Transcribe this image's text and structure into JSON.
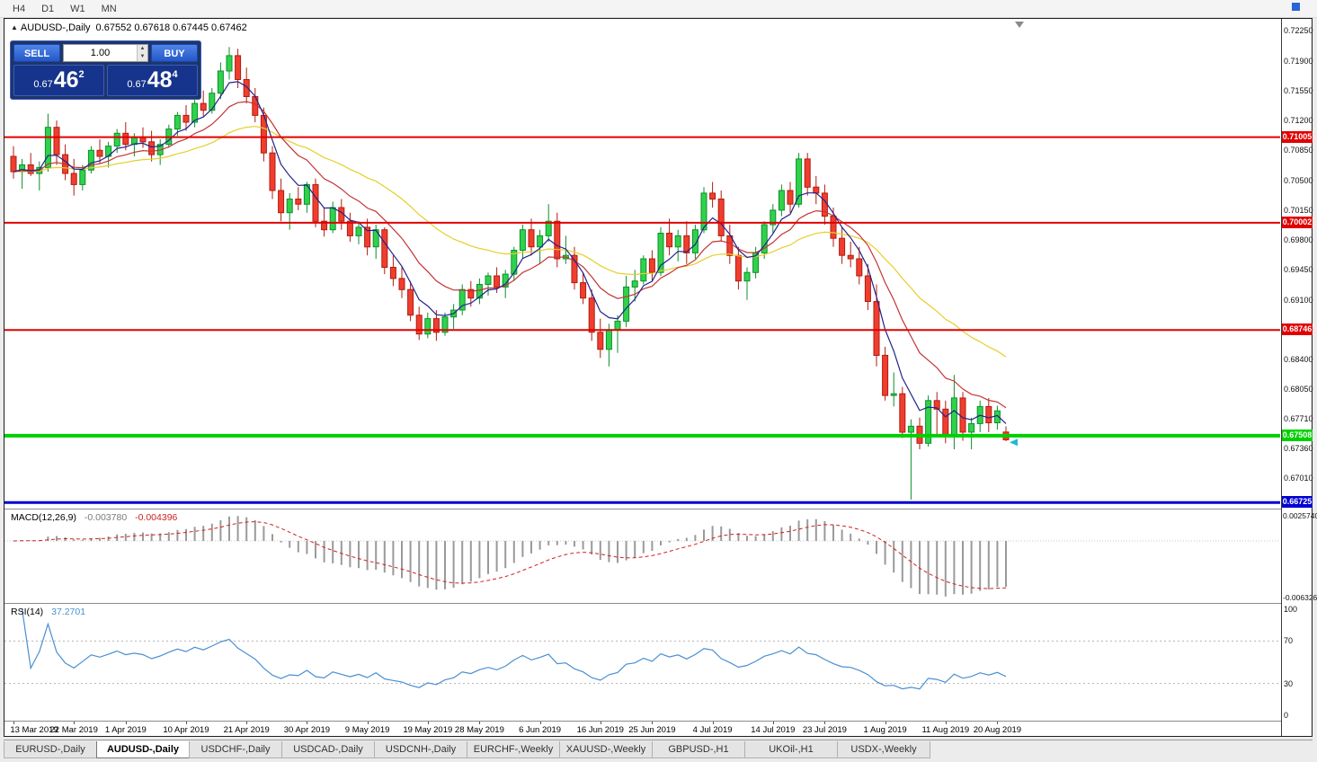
{
  "window": {
    "toolbar_buttons": [
      "H4",
      "D1",
      "W1",
      "MN"
    ]
  },
  "header": {
    "collapse_icon": "▲",
    "title": "AUDUSD-,Daily",
    "ohlc": "0.67552 0.67618 0.67445 0.67462"
  },
  "trade_panel": {
    "sell_label": "SELL",
    "buy_label": "BUY",
    "volume": "1.00",
    "spin_up_icon": "▲",
    "spin_down_icon": "▼",
    "sell_price": {
      "prefix": "0.67",
      "big": "46",
      "sup": "2"
    },
    "buy_price": {
      "prefix": "0.67",
      "big": "48",
      "sup": "4"
    }
  },
  "chart_data": {
    "type": "candlestick",
    "title": "AUDUSD-,Daily",
    "price_axis": {
      "top": 0.7239,
      "bottom": 0.66655,
      "ticks": [
        "0.72250",
        "0.71900",
        "0.71550",
        "0.71200",
        "0.70850",
        "0.70500",
        "0.70150",
        "0.69800",
        "0.69450",
        "0.69100",
        "0.68750",
        "0.68400",
        "0.68050",
        "0.67710",
        "0.67360",
        "0.67010"
      ]
    },
    "hlines": [
      {
        "price": 0.71005,
        "label": "0.71005",
        "color": "#e00000",
        "width": 2
      },
      {
        "price": 0.70002,
        "label": "0.70002",
        "color": "#e00000",
        "width": 2
      },
      {
        "price": 0.68746,
        "label": "0.68746",
        "color": "#e00000",
        "width": 2
      },
      {
        "price": 0.67508,
        "label": "0.67508",
        "color": "#00d000",
        "width": 4
      },
      {
        "price": 0.66725,
        "label": "0.66725",
        "color": "#0000d2",
        "width": 3
      }
    ],
    "moving_averages": [
      {
        "period": 30,
        "color": "#e6cf2a"
      },
      {
        "period": 12,
        "color": "#c43434"
      },
      {
        "period": 5,
        "color": "#22228e"
      }
    ],
    "candle_colors": {
      "bull": "#30d24b",
      "bull_border": "#0c8f2c",
      "bear": "#f03e2e",
      "bear_border": "#b01c10"
    },
    "candles": [
      [
        0.7078,
        0.709,
        0.7052,
        0.706
      ],
      [
        0.706,
        0.7075,
        0.704,
        0.7068
      ],
      [
        0.7068,
        0.7082,
        0.7055,
        0.7058
      ],
      [
        0.7058,
        0.7072,
        0.7038,
        0.7065
      ],
      [
        0.7065,
        0.7128,
        0.706,
        0.7112
      ],
      [
        0.7112,
        0.712,
        0.7068,
        0.708
      ],
      [
        0.708,
        0.7092,
        0.705,
        0.7058
      ],
      [
        0.7058,
        0.7075,
        0.7032,
        0.7045
      ],
      [
        0.7045,
        0.7068,
        0.7038,
        0.7062
      ],
      [
        0.7062,
        0.709,
        0.7058,
        0.7085
      ],
      [
        0.7085,
        0.7098,
        0.707,
        0.7078
      ],
      [
        0.7078,
        0.7095,
        0.7065,
        0.709
      ],
      [
        0.709,
        0.711,
        0.7082,
        0.7105
      ],
      [
        0.7105,
        0.7118,
        0.7085,
        0.7092
      ],
      [
        0.7092,
        0.7105,
        0.7078,
        0.71
      ],
      [
        0.71,
        0.7112,
        0.7088,
        0.7095
      ],
      [
        0.7095,
        0.7108,
        0.7072,
        0.708
      ],
      [
        0.708,
        0.7098,
        0.7068,
        0.7092
      ],
      [
        0.7092,
        0.7115,
        0.7088,
        0.711
      ],
      [
        0.711,
        0.713,
        0.7102,
        0.7126
      ],
      [
        0.7126,
        0.7138,
        0.7108,
        0.7118
      ],
      [
        0.7118,
        0.7145,
        0.7112,
        0.714
      ],
      [
        0.714,
        0.7155,
        0.7125,
        0.7132
      ],
      [
        0.7132,
        0.7158,
        0.7128,
        0.7152
      ],
      [
        0.7152,
        0.7188,
        0.7145,
        0.7178
      ],
      [
        0.7178,
        0.7206,
        0.7168,
        0.7196
      ],
      [
        0.7196,
        0.7204,
        0.7158,
        0.7168
      ],
      [
        0.7168,
        0.7182,
        0.714,
        0.7148
      ],
      [
        0.7148,
        0.7158,
        0.7118,
        0.7126
      ],
      [
        0.7126,
        0.7135,
        0.7072,
        0.7082
      ],
      [
        0.7082,
        0.709,
        0.7028,
        0.7038
      ],
      [
        0.7038,
        0.7052,
        0.7002,
        0.7012
      ],
      [
        0.7012,
        0.7035,
        0.6992,
        0.7028
      ],
      [
        0.7028,
        0.7042,
        0.7015,
        0.7022
      ],
      [
        0.7022,
        0.7048,
        0.7012,
        0.7045
      ],
      [
        0.7045,
        0.7052,
        0.6995,
        0.7002
      ],
      [
        0.7002,
        0.7018,
        0.6984,
        0.6992
      ],
      [
        0.6992,
        0.7025,
        0.6988,
        0.7018
      ],
      [
        0.7018,
        0.7028,
        0.6992,
        0.7002
      ],
      [
        0.7002,
        0.7012,
        0.6978,
        0.6985
      ],
      [
        0.6985,
        0.7002,
        0.6975,
        0.6995
      ],
      [
        0.6995,
        0.7005,
        0.6962,
        0.6972
      ],
      [
        0.6972,
        0.6998,
        0.6958,
        0.6992
      ],
      [
        0.6992,
        0.6995,
        0.694,
        0.6948
      ],
      [
        0.6948,
        0.6962,
        0.6926,
        0.6935
      ],
      [
        0.6935,
        0.6948,
        0.6912,
        0.6922
      ],
      [
        0.6922,
        0.6932,
        0.6885,
        0.6892
      ],
      [
        0.6892,
        0.6902,
        0.6863,
        0.687
      ],
      [
        0.687,
        0.6895,
        0.6865,
        0.6888
      ],
      [
        0.6888,
        0.6898,
        0.6862,
        0.6872
      ],
      [
        0.6872,
        0.6895,
        0.6868,
        0.689
      ],
      [
        0.689,
        0.6905,
        0.6876,
        0.6898
      ],
      [
        0.6898,
        0.6928,
        0.6892,
        0.6922
      ],
      [
        0.6922,
        0.6932,
        0.6902,
        0.6912
      ],
      [
        0.6912,
        0.6935,
        0.6905,
        0.6928
      ],
      [
        0.6928,
        0.6942,
        0.6915,
        0.6938
      ],
      [
        0.6938,
        0.6948,
        0.6918,
        0.6925
      ],
      [
        0.6925,
        0.6945,
        0.6912,
        0.694
      ],
      [
        0.694,
        0.6972,
        0.6932,
        0.6968
      ],
      [
        0.6968,
        0.6998,
        0.6958,
        0.6992
      ],
      [
        0.6992,
        0.7005,
        0.6962,
        0.6972
      ],
      [
        0.6972,
        0.6992,
        0.6952,
        0.6985
      ],
      [
        0.6985,
        0.7022,
        0.6978,
        0.7002
      ],
      [
        0.7002,
        0.7012,
        0.6948,
        0.6958
      ],
      [
        0.6958,
        0.6985,
        0.6952,
        0.6962
      ],
      [
        0.6962,
        0.6972,
        0.6922,
        0.693
      ],
      [
        0.693,
        0.6942,
        0.6905,
        0.6912
      ],
      [
        0.6912,
        0.6922,
        0.6862,
        0.6872
      ],
      [
        0.6872,
        0.6888,
        0.6842,
        0.6852
      ],
      [
        0.6852,
        0.6882,
        0.6832,
        0.6875
      ],
      [
        0.6875,
        0.6892,
        0.6848,
        0.6885
      ],
      [
        0.6885,
        0.6938,
        0.6878,
        0.6925
      ],
      [
        0.6925,
        0.6945,
        0.6908,
        0.6932
      ],
      [
        0.6932,
        0.6962,
        0.6928,
        0.6958
      ],
      [
        0.6958,
        0.6968,
        0.6932,
        0.6942
      ],
      [
        0.6942,
        0.6995,
        0.6938,
        0.6988
      ],
      [
        0.6988,
        0.7005,
        0.6962,
        0.6972
      ],
      [
        0.6972,
        0.6992,
        0.6955,
        0.6985
      ],
      [
        0.6985,
        0.7002,
        0.6952,
        0.6965
      ],
      [
        0.6965,
        0.6998,
        0.6958,
        0.6992
      ],
      [
        0.6992,
        0.7042,
        0.6988,
        0.7035
      ],
      [
        0.7035,
        0.7048,
        0.7018,
        0.7028
      ],
      [
        0.7028,
        0.7038,
        0.6978,
        0.6985
      ],
      [
        0.6985,
        0.6998,
        0.6952,
        0.6962
      ],
      [
        0.6962,
        0.6972,
        0.6922,
        0.6932
      ],
      [
        0.6932,
        0.6948,
        0.691,
        0.6942
      ],
      [
        0.6942,
        0.6972,
        0.6935,
        0.6965
      ],
      [
        0.6965,
        0.7002,
        0.6958,
        0.6998
      ],
      [
        0.6998,
        0.7022,
        0.6988,
        0.7015
      ],
      [
        0.7015,
        0.7045,
        0.7008,
        0.7038
      ],
      [
        0.7038,
        0.7048,
        0.7012,
        0.7022
      ],
      [
        0.7022,
        0.7082,
        0.7018,
        0.7075
      ],
      [
        0.7075,
        0.7082,
        0.7032,
        0.7042
      ],
      [
        0.7042,
        0.7055,
        0.7022,
        0.7035
      ],
      [
        0.7035,
        0.7045,
        0.6998,
        0.7008
      ],
      [
        0.7008,
        0.7018,
        0.6972,
        0.6982
      ],
      [
        0.6982,
        0.6995,
        0.6952,
        0.6962
      ],
      [
        0.6962,
        0.6978,
        0.6948,
        0.6958
      ],
      [
        0.6958,
        0.6972,
        0.6928,
        0.6938
      ],
      [
        0.6938,
        0.6952,
        0.6898,
        0.6908
      ],
      [
        0.6908,
        0.6928,
        0.6832,
        0.6845
      ],
      [
        0.6845,
        0.6855,
        0.6792,
        0.6798
      ],
      [
        0.6798,
        0.6825,
        0.6785,
        0.68
      ],
      [
        0.68,
        0.6808,
        0.6748,
        0.6755
      ],
      [
        0.6755,
        0.677,
        0.6676,
        0.6762
      ],
      [
        0.6762,
        0.6772,
        0.6735,
        0.6742
      ],
      [
        0.6742,
        0.6798,
        0.6738,
        0.6792
      ],
      [
        0.6792,
        0.6802,
        0.6752,
        0.6782
      ],
      [
        0.6782,
        0.6792,
        0.6742,
        0.6752
      ],
      [
        0.6752,
        0.6822,
        0.6735,
        0.6795
      ],
      [
        0.6795,
        0.6802,
        0.6745,
        0.6755
      ],
      [
        0.6755,
        0.6772,
        0.6735,
        0.6765
      ],
      [
        0.6765,
        0.6792,
        0.6755,
        0.6785
      ],
      [
        0.6785,
        0.6795,
        0.6755,
        0.6766
      ],
      [
        0.6766,
        0.6786,
        0.6758,
        0.678
      ],
      [
        0.67552,
        0.67618,
        0.67445,
        0.67462
      ]
    ],
    "date_labels": [
      {
        "label": "13 Mar 2019",
        "i": 0
      },
      {
        "label": "22 Mar 2019",
        "i": 7
      },
      {
        "label": "1 Apr 2019",
        "i": 13
      },
      {
        "label": "10 Apr 2019",
        "i": 20
      },
      {
        "label": "21 Apr 2019",
        "i": 27
      },
      {
        "label": "30 Apr 2019",
        "i": 34
      },
      {
        "label": "9 May 2019",
        "i": 41
      },
      {
        "label": "19 May 2019",
        "i": 48
      },
      {
        "label": "28 May 2019",
        "i": 54
      },
      {
        "label": "6 Jun 2019",
        "i": 61
      },
      {
        "label": "16 Jun 2019",
        "i": 68
      },
      {
        "label": "25 Jun 2019",
        "i": 74
      },
      {
        "label": "4 Jul 2019",
        "i": 81
      },
      {
        "label": "14 Jul 2019",
        "i": 88
      },
      {
        "label": "23 Jul 2019",
        "i": 94
      },
      {
        "label": "1 Aug 2019",
        "i": 101
      },
      {
        "label": "11 Aug 2019",
        "i": 108
      },
      {
        "label": "20 Aug 2019",
        "i": 114
      }
    ],
    "indicators": {
      "macd": {
        "name": "MACD(12,26,9)",
        "value_main": "-0.003780",
        "value_signal": "-0.004396",
        "fast": 12,
        "slow": 26,
        "signal": 9,
        "axis_max": "0.0025740",
        "axis_min": "-0.0063260",
        "hist_color": "#9a9a9a",
        "signal_color": "#d02020"
      },
      "rsi": {
        "name": "RSI(14)",
        "value": "37.2701",
        "period": 14,
        "levels": [
          "100",
          "70",
          "30",
          "0"
        ],
        "color": "#4a8fd2"
      }
    }
  },
  "tabs": {
    "items": [
      "EURUSD-,Daily",
      "AUDUSD-,Daily",
      "USDCHF-,Daily",
      "USDCAD-,Daily",
      "USDCNH-,Daily",
      "EURCHF-,Weekly",
      "XAUUSD-,Weekly",
      "GBPUSD-,H1",
      "UKOil-,H1",
      "USDX-,Weekly"
    ],
    "active": "AUDUSD-,Daily"
  }
}
